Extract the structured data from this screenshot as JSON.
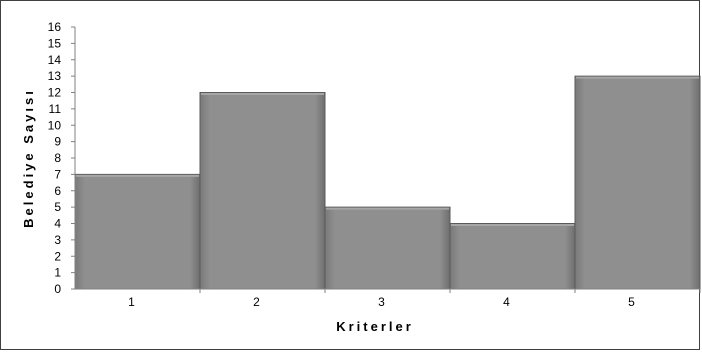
{
  "chart_data": {
    "type": "bar",
    "categories": [
      "1",
      "2",
      "3",
      "4",
      "5"
    ],
    "values": [
      7,
      12,
      5,
      4,
      13
    ],
    "xlabel": "Kriterler",
    "ylabel": "Belediye Sayısı",
    "ylim": [
      0,
      16
    ],
    "yticks": [
      0,
      1,
      2,
      3,
      4,
      5,
      6,
      7,
      8,
      9,
      10,
      11,
      12,
      13,
      14,
      15,
      16
    ],
    "grid": false,
    "legend": "none",
    "colors": {
      "bar": "#8c8c8c",
      "bar_edge": "#5a5a5a",
      "bar_highlight": "#a6a6a6"
    }
  }
}
